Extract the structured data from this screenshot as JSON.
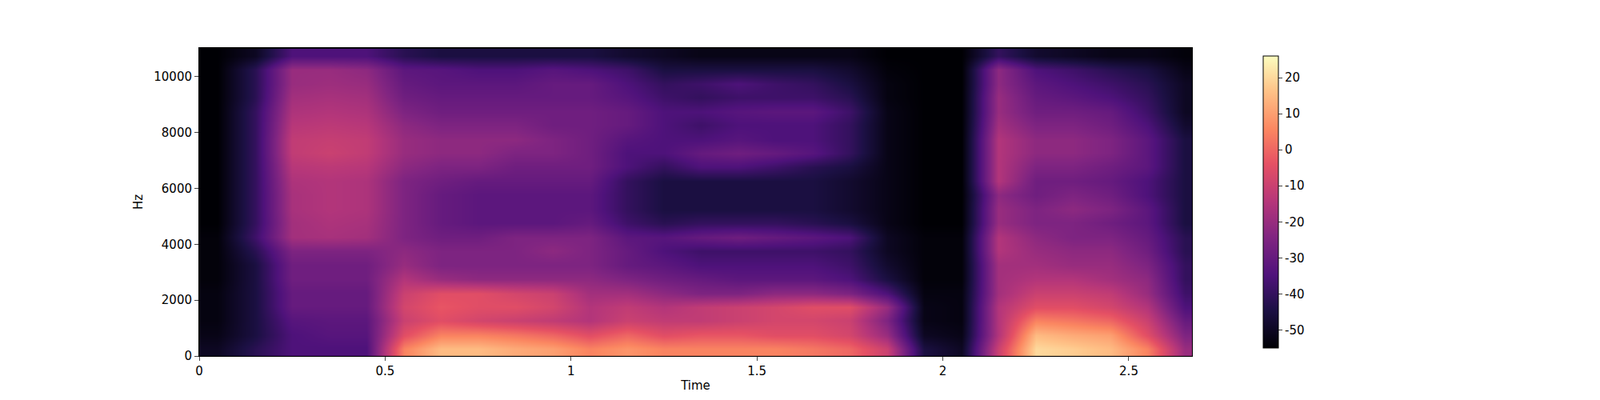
{
  "chart_data": {
    "type": "heatmap",
    "x_label": "Time",
    "y_label": "Hz",
    "xlim": [
      0,
      2.67
    ],
    "ylim": [
      0,
      11025
    ],
    "xticks": [
      0,
      0.5,
      1,
      1.5,
      2,
      2.5
    ],
    "yticks": [
      0,
      2000,
      4000,
      6000,
      8000,
      10000
    ],
    "x": [
      0.05,
      0.15,
      0.25,
      0.35,
      0.45,
      0.55,
      0.65,
      0.75,
      0.85,
      0.95,
      1.05,
      1.15,
      1.25,
      1.35,
      1.45,
      1.55,
      1.65,
      1.75,
      1.85,
      1.95,
      2.05,
      2.15,
      2.25,
      2.35,
      2.45,
      2.55,
      2.65
    ],
    "y": [
      250,
      750,
      1250,
      1750,
      2250,
      2750,
      3250,
      3750,
      4250,
      4750,
      5250,
      5750,
      6250,
      6750,
      7250,
      7750,
      8250,
      8750,
      9250,
      9750,
      10250,
      10750
    ],
    "cells": [
      [
        -50,
        -42,
        -35,
        -35,
        -35,
        5,
        15,
        15,
        12,
        10,
        5,
        8,
        5,
        5,
        5,
        5,
        3,
        0,
        -10,
        -45,
        -50,
        -10,
        20,
        18,
        15,
        5,
        -20
      ],
      [
        -52,
        -45,
        -35,
        -33,
        -33,
        -5,
        5,
        5,
        3,
        0,
        -5,
        0,
        -5,
        -3,
        -3,
        -5,
        -5,
        -8,
        -20,
        -50,
        -52,
        -15,
        15,
        12,
        10,
        -5,
        -25
      ],
      [
        -53,
        -45,
        -33,
        -32,
        -32,
        -10,
        -5,
        -8,
        -10,
        -12,
        -15,
        -10,
        -12,
        -12,
        -10,
        -8,
        -8,
        -10,
        -25,
        -52,
        -53,
        -15,
        5,
        3,
        0,
        -10,
        -30
      ],
      [
        -53,
        -45,
        -30,
        -30,
        -30,
        -8,
        -3,
        -5,
        -5,
        -8,
        -15,
        -12,
        -15,
        -12,
        -10,
        -8,
        -5,
        -5,
        -20,
        -52,
        -53,
        -15,
        -5,
        -5,
        -8,
        -15,
        -35
      ],
      [
        -53,
        -45,
        -30,
        -30,
        -30,
        -10,
        -5,
        -5,
        -8,
        -10,
        -18,
        -18,
        -22,
        -25,
        -25,
        -22,
        -22,
        -25,
        -35,
        -53,
        -53,
        -18,
        -10,
        -10,
        -12,
        -20,
        -38
      ],
      [
        -54,
        -45,
        -28,
        -28,
        -28,
        -15,
        -20,
        -22,
        -22,
        -22,
        -22,
        -25,
        -28,
        -30,
        -32,
        -32,
        -32,
        -35,
        -45,
        -54,
        -54,
        -18,
        -15,
        -15,
        -18,
        -22,
        -40
      ],
      [
        -54,
        -45,
        -28,
        -28,
        -28,
        -20,
        -25,
        -25,
        -25,
        -25,
        -25,
        -30,
        -32,
        -35,
        -35,
        -35,
        -35,
        -38,
        -48,
        -54,
        -54,
        -18,
        -18,
        -20,
        -20,
        -25,
        -40
      ],
      [
        -54,
        -42,
        -25,
        -25,
        -25,
        -22,
        -25,
        -25,
        -25,
        -22,
        -25,
        -30,
        -35,
        -38,
        -38,
        -38,
        -38,
        -40,
        -50,
        -54,
        -54,
        -15,
        -20,
        -22,
        -22,
        -28,
        -42
      ],
      [
        -54,
        -38,
        -18,
        -17,
        -18,
        -25,
        -28,
        -28,
        -25,
        -25,
        -25,
        -32,
        -33,
        -30,
        -28,
        -30,
        -32,
        -35,
        -50,
        -54,
        -54,
        -15,
        -22,
        -25,
        -25,
        -30,
        -42
      ],
      [
        -55,
        -40,
        -18,
        -16,
        -17,
        -25,
        -30,
        -32,
        -32,
        -32,
        -30,
        -38,
        -42,
        -40,
        -40,
        -40,
        -42,
        -45,
        -52,
        -55,
        -55,
        -20,
        -25,
        -25,
        -28,
        -32,
        -45
      ],
      [
        -55,
        -40,
        -17,
        -15,
        -16,
        -25,
        -30,
        -32,
        -32,
        -32,
        -32,
        -40,
        -45,
        -45,
        -45,
        -45,
        -45,
        -48,
        -52,
        -55,
        -55,
        -20,
        -25,
        -22,
        -25,
        -32,
        -45
      ],
      [
        -55,
        -40,
        -17,
        -15,
        -16,
        -25,
        -30,
        -32,
        -32,
        -32,
        -32,
        -40,
        -45,
        -45,
        -45,
        -45,
        -45,
        -48,
        -52,
        -55,
        -55,
        -22,
        -28,
        -25,
        -28,
        -35,
        -45
      ],
      [
        -55,
        -40,
        -16,
        -15,
        -16,
        -25,
        -28,
        -30,
        -30,
        -30,
        -30,
        -40,
        -45,
        -45,
        -45,
        -45,
        -45,
        -48,
        -52,
        -55,
        -55,
        -15,
        -28,
        -28,
        -30,
        -35,
        -45
      ],
      [
        -55,
        -40,
        -14,
        -13,
        -14,
        -22,
        -25,
        -25,
        -28,
        -28,
        -28,
        -35,
        -40,
        -35,
        -35,
        -38,
        -42,
        -45,
        -52,
        -55,
        -55,
        -15,
        -25,
        -25,
        -28,
        -32,
        -45
      ],
      [
        -55,
        -40,
        -12,
        -10,
        -12,
        -20,
        -22,
        -22,
        -25,
        -25,
        -28,
        -35,
        -35,
        -30,
        -28,
        -30,
        -33,
        -40,
        -52,
        -55,
        -55,
        -15,
        -22,
        -22,
        -25,
        -32,
        -45
      ],
      [
        -55,
        -40,
        -12,
        -11,
        -12,
        -20,
        -22,
        -22,
        -22,
        -25,
        -28,
        -33,
        -35,
        -35,
        -33,
        -35,
        -35,
        -40,
        -52,
        -55,
        -55,
        -15,
        -22,
        -22,
        -25,
        -32,
        -45
      ],
      [
        -55,
        -40,
        -14,
        -13,
        -14,
        -22,
        -25,
        -25,
        -25,
        -28,
        -28,
        -30,
        -35,
        -38,
        -35,
        -35,
        -35,
        -40,
        -52,
        -55,
        -55,
        -18,
        -25,
        -25,
        -28,
        -35,
        -48
      ],
      [
        -55,
        -40,
        -16,
        -15,
        -16,
        -25,
        -28,
        -28,
        -28,
        -28,
        -28,
        -30,
        -35,
        -35,
        -33,
        -32,
        -32,
        -38,
        -52,
        -55,
        -55,
        -20,
        -28,
        -28,
        -30,
        -38,
        -50
      ],
      [
        -55,
        -42,
        -18,
        -17,
        -18,
        -28,
        -30,
        -30,
        -30,
        -30,
        -30,
        -33,
        -38,
        -40,
        -38,
        -38,
        -38,
        -42,
        -53,
        -55,
        -55,
        -20,
        -30,
        -32,
        -35,
        -40,
        -50
      ],
      [
        -55,
        -42,
        -20,
        -19,
        -20,
        -30,
        -32,
        -32,
        -32,
        -30,
        -30,
        -35,
        -40,
        -38,
        -35,
        -38,
        -40,
        -45,
        -53,
        -55,
        -55,
        -22,
        -32,
        -35,
        -38,
        -42,
        -50
      ],
      [
        -55,
        -42,
        -20,
        -20,
        -22,
        -32,
        -33,
        -35,
        -35,
        -33,
        -35,
        -38,
        -45,
        -45,
        -45,
        -45,
        -45,
        -48,
        -54,
        -55,
        -55,
        -22,
        -35,
        -38,
        -42,
        -45,
        -52
      ],
      [
        -55,
        -50,
        -35,
        -35,
        -35,
        -42,
        -45,
        -45,
        -45,
        -45,
        -45,
        -48,
        -50,
        -52,
        -52,
        -52,
        -52,
        -52,
        -55,
        -55,
        -55,
        -40,
        -48,
        -50,
        -52,
        -52,
        -54
      ]
    ],
    "colorbar": {
      "range": [
        -55,
        26
      ],
      "ticks": [
        -50,
        -40,
        -30,
        -20,
        -10,
        0,
        10,
        20
      ]
    }
  }
}
